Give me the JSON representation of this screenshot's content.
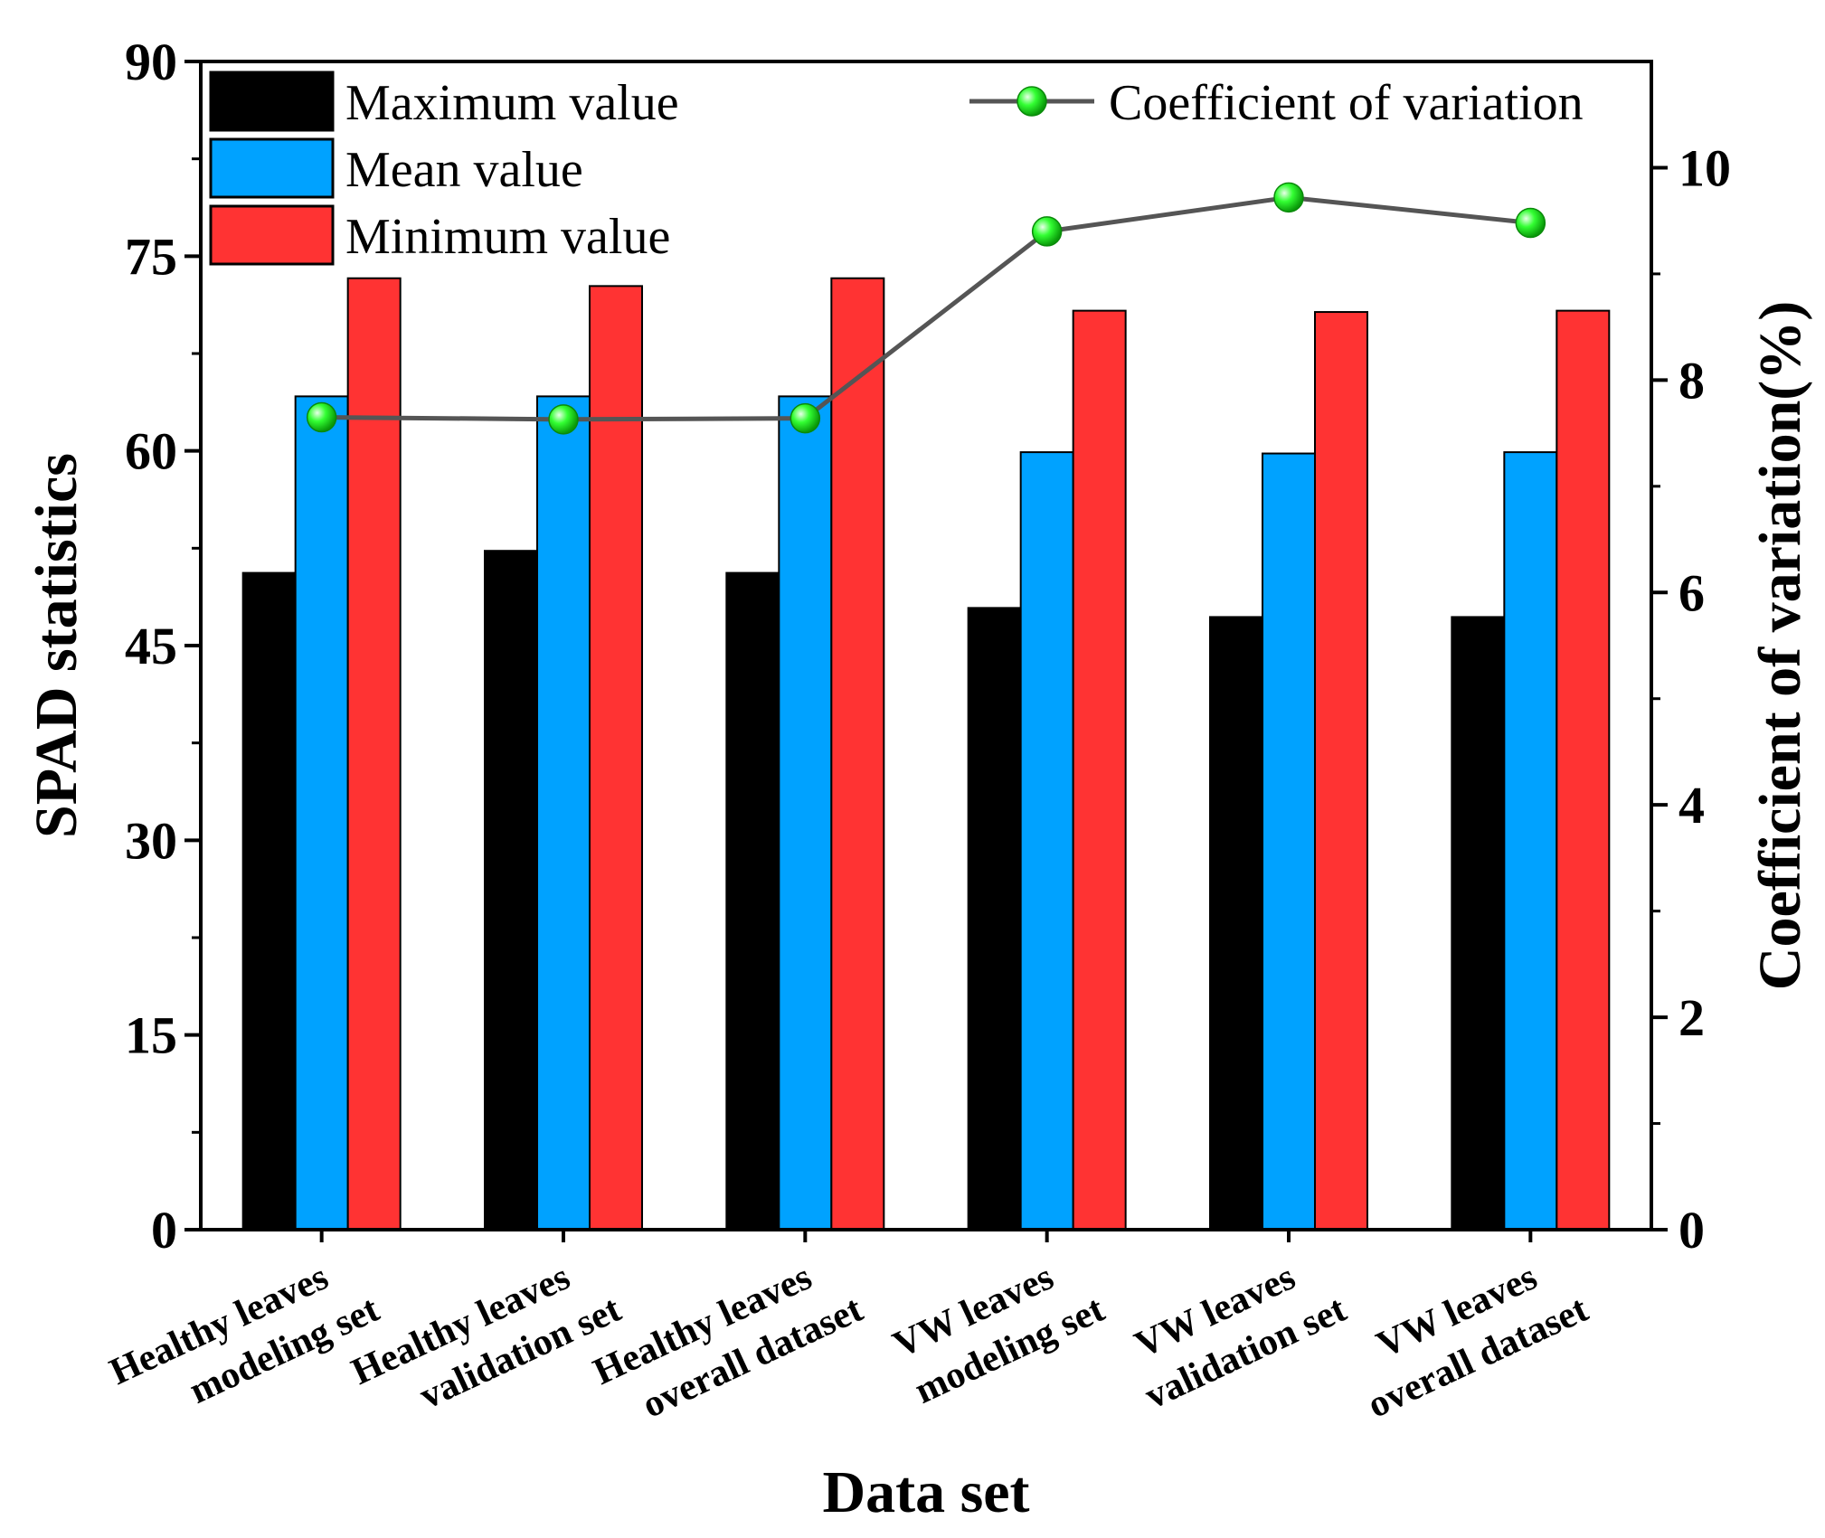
{
  "chart_data": {
    "type": "bar",
    "xlabel": "Data set",
    "ylabel": "SPAD statistics",
    "y2label": "Coefficient of variation(%)",
    "ylim": [
      0,
      90
    ],
    "y2lim": [
      0,
      11
    ],
    "yticks": [
      "0",
      "15",
      "30",
      "45",
      "60",
      "75",
      "90"
    ],
    "y2ticks": [
      "0",
      "2",
      "4",
      "6",
      "8",
      "10"
    ],
    "categories": [
      [
        "Healthy leaves",
        "modeling set"
      ],
      [
        "Healthy leaves",
        "validation set"
      ],
      [
        "Healthy leaves",
        "overall dataset"
      ],
      [
        "VW leaves",
        "modeling set"
      ],
      [
        "VW leaves",
        "validation set"
      ],
      [
        "VW leaves",
        "overall dataset"
      ]
    ],
    "series": [
      {
        "name": "Maximum value",
        "color": "#000000",
        "values": [
          50.6,
          52.3,
          50.6,
          47.9,
          47.2,
          47.2
        ]
      },
      {
        "name": "Mean value",
        "color": "#00A2FF",
        "values": [
          64.2,
          64.2,
          64.2,
          59.9,
          59.8,
          59.9
        ]
      },
      {
        "name": "Minimum value",
        "color": "#FF3333",
        "values": [
          73.3,
          72.7,
          73.3,
          70.8,
          70.7,
          70.8
        ]
      }
    ],
    "line_series": {
      "name": "Coefficient of variation",
      "axis": "right",
      "line_color": "#555555",
      "marker_color": "#33FF33",
      "values": [
        7.65,
        7.63,
        7.64,
        9.4,
        9.72,
        9.48
      ]
    },
    "legend": {
      "bars_position": "top-left",
      "line_position": "top-right"
    }
  }
}
